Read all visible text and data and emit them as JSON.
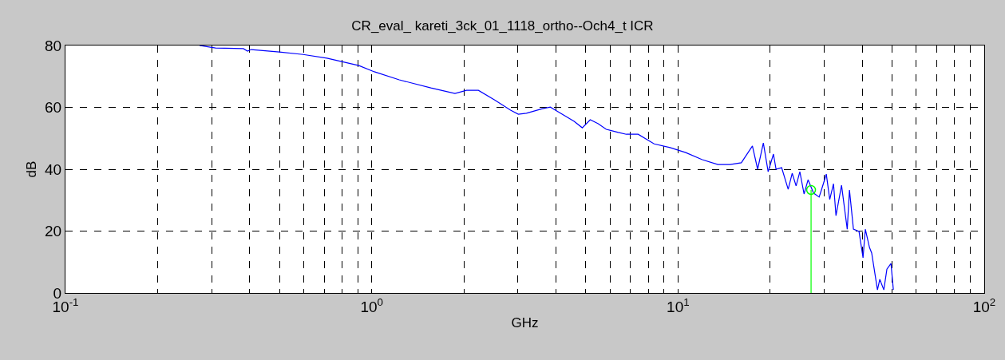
{
  "chart_data": {
    "type": "line",
    "title": "CR_eval_ kareti_3ck_01_1118_ortho--Och4_t ICR",
    "xlabel": "GHz",
    "ylabel": "dB",
    "log": "x",
    "grid": true,
    "marker": "none",
    "line_style": "solid",
    "xlim": [
      0.1,
      100
    ],
    "ylim": [
      0,
      80
    ],
    "xticks": [
      {
        "value": 0.1,
        "label": "10$^{-1}$"
      },
      {
        "value": 0.2,
        "label": null
      },
      {
        "value": 0.3,
        "label": null
      },
      {
        "value": 0.4,
        "label": null
      },
      {
        "value": 0.5,
        "label": null
      },
      {
        "value": 0.6,
        "label": null
      },
      {
        "value": 0.7,
        "label": null
      },
      {
        "value": 0.8,
        "label": null
      },
      {
        "value": 0.9,
        "label": null
      },
      {
        "value": 1,
        "label": "10$^{0}$"
      },
      {
        "value": 2,
        "label": null
      },
      {
        "value": 3,
        "label": null
      },
      {
        "value": 4,
        "label": null
      },
      {
        "value": 5,
        "label": null
      },
      {
        "value": 6,
        "label": null
      },
      {
        "value": 7,
        "label": null
      },
      {
        "value": 8,
        "label": null
      },
      {
        "value": 9,
        "label": null
      },
      {
        "value": 10,
        "label": "10$^{1}$"
      },
      {
        "value": 20,
        "label": null
      },
      {
        "value": 30,
        "label": null
      },
      {
        "value": 40,
        "label": null
      },
      {
        "value": 50,
        "label": null
      },
      {
        "value": 60,
        "label": null
      },
      {
        "value": 70,
        "label": null
      },
      {
        "value": 80,
        "label": null
      },
      {
        "value": 90,
        "label": null
      },
      {
        "value": 100,
        "label": "10$^{2}$"
      }
    ],
    "yticks": [
      0,
      20,
      40,
      60,
      80
    ],
    "series": [
      {
        "color": "#0000ff",
        "x": [
          0.274,
          0.309,
          0.381,
          0.393,
          0.404,
          0.499,
          0.597,
          0.714,
          0.908,
          1.02,
          1.23,
          1.56,
          1.87,
          2.04,
          2.23,
          2.52,
          2.84,
          3.01,
          3.2,
          3.61,
          3.83,
          4.06,
          4.58,
          4.87,
          5.17,
          5.49,
          5.83,
          6.38,
          6.78,
          7.41,
          8.36,
          9.42,
          10.6,
          12.0,
          13.5,
          14.8,
          16.1,
          17.5,
          18.2,
          19.0,
          19.7,
          20.5,
          20.9,
          21.8,
          22.9,
          23.6,
          24.3,
          25.0,
          25.8,
          26.6,
          27.7,
          28.9,
          29.4,
          30.5,
          31.3,
          32.2,
          32.8,
          34.2,
          35.7,
          36.3,
          37.4,
          39.0,
          40.2,
          40.9,
          42.2,
          42.9,
          44.8,
          45.6,
          47.0,
          48.1,
          49.6,
          50.5
        ],
        "values": [
          80.0,
          79.2,
          79.0,
          78.2,
          78.7,
          77.9,
          77.1,
          75.9,
          73.5,
          71.5,
          68.9,
          66.3,
          64.5,
          65.5,
          65.5,
          62.4,
          59.1,
          57.8,
          58.1,
          59.6,
          60.1,
          58.6,
          55.5,
          53.4,
          56.0,
          54.7,
          52.9,
          51.9,
          51.3,
          51.3,
          48.2,
          47.0,
          45.4,
          43.1,
          41.5,
          41.5,
          42.1,
          47.5,
          40.0,
          48.5,
          39.2,
          44.9,
          40.0,
          40.5,
          33.5,
          38.7,
          34.6,
          39.2,
          32.0,
          36.6,
          32.3,
          31.0,
          33.3,
          38.4,
          30.2,
          35.3,
          25.0,
          34.8,
          20.6,
          33.3,
          20.6,
          19.9,
          11.4,
          20.6,
          14.7,
          12.9,
          1.0,
          4.4,
          1.0,
          7.7,
          9.5,
          1.0
        ]
      },
      {
        "type": "lollipop",
        "color": "#00ff00",
        "marker": "circle",
        "x": [
          27.2
        ],
        "values": [
          33.3
        ]
      }
    ]
  }
}
